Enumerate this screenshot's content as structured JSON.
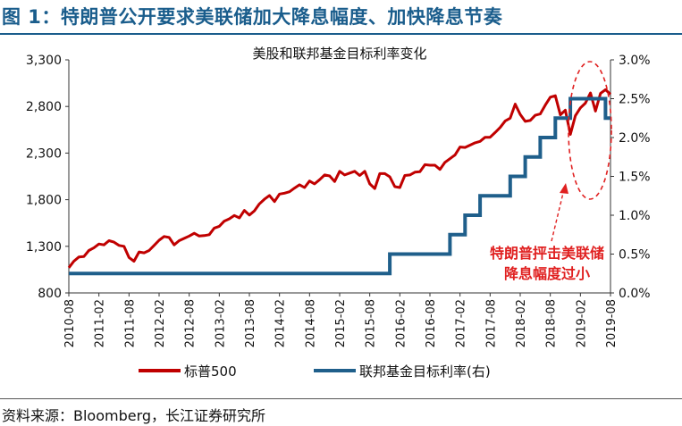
{
  "figure": {
    "title": "图 1：特朗普公开要求美联储加大降息幅度、加快降息节奏",
    "source": "资料来源：Bloomberg，长江证券研究所"
  },
  "chart_data": {
    "type": "line",
    "title": "美股和联邦基金目标利率变化",
    "x_tick_labels": [
      "2010-08",
      "2011-02",
      "2011-08",
      "2012-02",
      "2012-08",
      "2013-02",
      "2013-08",
      "2014-02",
      "2014-08",
      "2015-02",
      "2015-08",
      "2016-02",
      "2016-08",
      "2017-02",
      "2017-08",
      "2018-02",
      "2018-08",
      "2019-02",
      "2019-08"
    ],
    "xlim": [
      "2010-08",
      "2019-08"
    ],
    "y_left": {
      "ylim": [
        800,
        3300
      ],
      "ticks": [
        800,
        1300,
        1800,
        2300,
        2800,
        3300
      ],
      "tick_labels": [
        "800",
        "1,300",
        "1,800",
        "2,300",
        "2,800",
        "3,300"
      ]
    },
    "y_right": {
      "ylim": [
        0,
        3.0
      ],
      "ticks": [
        0,
        0.5,
        1.0,
        1.5,
        2.0,
        2.5,
        3.0
      ],
      "tick_labels": [
        "0.0%",
        "0.5%",
        "1.0%",
        "1.5%",
        "2.0%",
        "2.5%",
        "3.0%"
      ]
    },
    "series": [
      {
        "name": "标普500",
        "axis": "left",
        "color": "#c00000",
        "points": [
          [
            "2010-08",
            1070
          ],
          [
            "2010-09",
            1140
          ],
          [
            "2010-10",
            1185
          ],
          [
            "2010-11",
            1190
          ],
          [
            "2010-12",
            1255
          ],
          [
            "2011-01",
            1285
          ],
          [
            "2011-02",
            1325
          ],
          [
            "2011-03",
            1315
          ],
          [
            "2011-04",
            1360
          ],
          [
            "2011-05",
            1345
          ],
          [
            "2011-06",
            1310
          ],
          [
            "2011-07",
            1300
          ],
          [
            "2011-08",
            1180
          ],
          [
            "2011-09",
            1140
          ],
          [
            "2011-10",
            1240
          ],
          [
            "2011-11",
            1230
          ],
          [
            "2011-12",
            1255
          ],
          [
            "2012-01",
            1310
          ],
          [
            "2012-02",
            1365
          ],
          [
            "2012-03",
            1405
          ],
          [
            "2012-04",
            1395
          ],
          [
            "2012-05",
            1315
          ],
          [
            "2012-06",
            1360
          ],
          [
            "2012-07",
            1385
          ],
          [
            "2012-08",
            1410
          ],
          [
            "2012-09",
            1440
          ],
          [
            "2012-10",
            1410
          ],
          [
            "2012-11",
            1415
          ],
          [
            "2012-12",
            1425
          ],
          [
            "2013-01",
            1495
          ],
          [
            "2013-02",
            1515
          ],
          [
            "2013-03",
            1570
          ],
          [
            "2013-04",
            1595
          ],
          [
            "2013-05",
            1630
          ],
          [
            "2013-06",
            1605
          ],
          [
            "2013-07",
            1685
          ],
          [
            "2013-08",
            1635
          ],
          [
            "2013-09",
            1680
          ],
          [
            "2013-10",
            1755
          ],
          [
            "2013-11",
            1805
          ],
          [
            "2013-12",
            1845
          ],
          [
            "2014-01",
            1780
          ],
          [
            "2014-02",
            1860
          ],
          [
            "2014-03",
            1870
          ],
          [
            "2014-04",
            1885
          ],
          [
            "2014-05",
            1925
          ],
          [
            "2014-06",
            1960
          ],
          [
            "2014-07",
            1930
          ],
          [
            "2014-08",
            2000
          ],
          [
            "2014-09",
            1970
          ],
          [
            "2014-10",
            2015
          ],
          [
            "2014-11",
            2065
          ],
          [
            "2014-12",
            2055
          ],
          [
            "2015-01",
            1995
          ],
          [
            "2015-02",
            2105
          ],
          [
            "2015-03",
            2065
          ],
          [
            "2015-04",
            2085
          ],
          [
            "2015-05",
            2105
          ],
          [
            "2015-06",
            2060
          ],
          [
            "2015-07",
            2105
          ],
          [
            "2015-08",
            1970
          ],
          [
            "2015-09",
            1920
          ],
          [
            "2015-10",
            2080
          ],
          [
            "2015-11",
            2080
          ],
          [
            "2015-12",
            2045
          ],
          [
            "2016-01",
            1940
          ],
          [
            "2016-02",
            1930
          ],
          [
            "2016-03",
            2060
          ],
          [
            "2016-04",
            2065
          ],
          [
            "2016-05",
            2095
          ],
          [
            "2016-06",
            2100
          ],
          [
            "2016-07",
            2175
          ],
          [
            "2016-08",
            2170
          ],
          [
            "2016-09",
            2170
          ],
          [
            "2016-10",
            2125
          ],
          [
            "2016-11",
            2200
          ],
          [
            "2016-12",
            2240
          ],
          [
            "2017-01",
            2280
          ],
          [
            "2017-02",
            2365
          ],
          [
            "2017-03",
            2360
          ],
          [
            "2017-04",
            2385
          ],
          [
            "2017-05",
            2410
          ],
          [
            "2017-06",
            2425
          ],
          [
            "2017-07",
            2470
          ],
          [
            "2017-08",
            2470
          ],
          [
            "2017-09",
            2520
          ],
          [
            "2017-10",
            2575
          ],
          [
            "2017-11",
            2645
          ],
          [
            "2017-12",
            2675
          ],
          [
            "2018-01",
            2825
          ],
          [
            "2018-02",
            2715
          ],
          [
            "2018-03",
            2640
          ],
          [
            "2018-04",
            2650
          ],
          [
            "2018-05",
            2705
          ],
          [
            "2018-06",
            2720
          ],
          [
            "2018-07",
            2815
          ],
          [
            "2018-08",
            2900
          ],
          [
            "2018-09",
            2915
          ],
          [
            "2018-10",
            2710
          ],
          [
            "2018-11",
            2760
          ],
          [
            "2018-12",
            2500
          ],
          [
            "2019-01",
            2700
          ],
          [
            "2019-02",
            2785
          ],
          [
            "2019-03",
            2835
          ],
          [
            "2019-04",
            2945
          ],
          [
            "2019-05",
            2750
          ],
          [
            "2019-06",
            2940
          ],
          [
            "2019-07",
            2980
          ],
          [
            "2019-08",
            2930
          ]
        ]
      },
      {
        "name": "联邦基金目标利率(右)",
        "axis": "right",
        "color": "#1f5f8b",
        "steps": [
          [
            "2010-08",
            0.25
          ],
          [
            "2015-12",
            0.5
          ],
          [
            "2016-12",
            0.75
          ],
          [
            "2017-03",
            1.0
          ],
          [
            "2017-06",
            1.25
          ],
          [
            "2017-12",
            1.5
          ],
          [
            "2018-03",
            1.75
          ],
          [
            "2018-06",
            2.0
          ],
          [
            "2018-09",
            2.25
          ],
          [
            "2018-12",
            2.5
          ],
          [
            "2019-07",
            2.25
          ],
          [
            "2019-08",
            2.25
          ]
        ]
      }
    ],
    "annotation": {
      "text_lines": [
        "特朗普抨击美联储",
        "降息幅度过小"
      ],
      "color": "#e02020"
    },
    "legend": {
      "placement": "bottom",
      "items": [
        "标普500",
        "联邦基金目标利率(右)"
      ]
    }
  }
}
